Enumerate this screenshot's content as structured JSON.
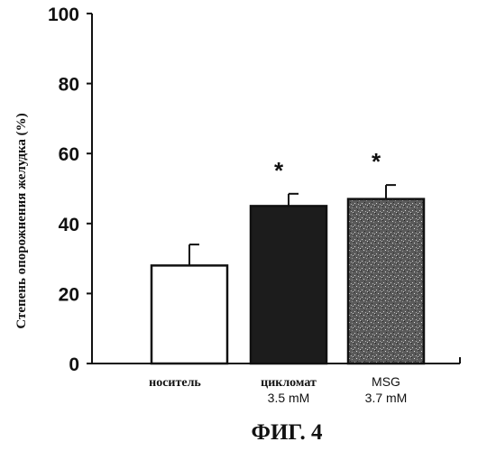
{
  "chart_data": {
    "type": "bar",
    "ylabel": "Степень опорожнения желудка  (%)",
    "ylim": [
      0,
      100
    ],
    "yticks": [
      0,
      20,
      40,
      60,
      80,
      100
    ],
    "categories": [
      {
        "lines": [
          "носитель"
        ],
        "value": 28,
        "error": 6,
        "fill": "#ffffff",
        "significance": ""
      },
      {
        "lines": [
          "цикломат",
          "3.5 mM"
        ],
        "value": 45,
        "error": 3.5,
        "fill": "#1c1c1c",
        "significance": "*"
      },
      {
        "lines": [
          "MSG",
          "3.7 mM"
        ],
        "value": 47,
        "error": 4,
        "fill": "#5e5e5e",
        "significance": "*"
      }
    ],
    "grid": false,
    "legend": "none"
  },
  "figure_label": "ФИГ. 4"
}
